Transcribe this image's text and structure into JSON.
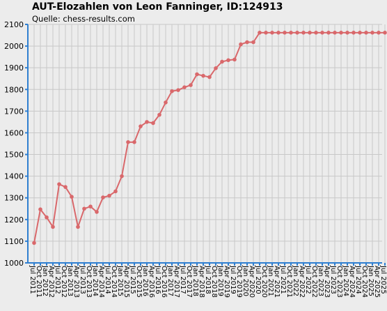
{
  "chart_data": {
    "type": "line",
    "title": "AUT-Elozahlen von Leon Fanninger, ID:124913",
    "subtitle": "Quelle: chess-results.com",
    "xlabel": "",
    "ylabel": "",
    "ylim": [
      1000,
      2100
    ],
    "yticks": [
      1000,
      1100,
      1200,
      1300,
      1400,
      1500,
      1600,
      1700,
      1800,
      1900,
      2000,
      2100
    ],
    "grid": true,
    "line_color": "#d9686b",
    "categories": [
      "Jul 2011",
      "Oct 2011",
      "Jan 2012",
      "Apr 2012",
      "Jul 2012",
      "Oct 2012",
      "Jan 2013",
      "Apr 2013",
      "Jul 2013",
      "Oct 2013",
      "Jan 2014",
      "Apr 2014",
      "Jul 2014",
      "Oct 2014",
      "Jan 2015",
      "Apr 2015",
      "Jul 2015",
      "Oct 2015",
      "Jan 2016",
      "Apr 2016",
      "Jul 2016",
      "Oct 2016",
      "Jan 2017",
      "Apr 2017",
      "Jul 2017",
      "Oct 2017",
      "Jan 2018",
      "Apr 2018",
      "Jul 2018",
      "Oct 2018",
      "Jan 2019",
      "Apr 2019",
      "Jul 2019",
      "Oct 2019",
      "Jan 2020",
      "Apr 2020",
      "Jul 2020",
      "Oct 2020",
      "Jan 2021",
      "Apr 2021",
      "Jul 2021",
      "Oct 2021",
      "Jan 2022",
      "Apr 2022",
      "Jul 2022",
      "Oct 2022",
      "Jan 2023",
      "Apr 2023",
      "Jul 2023",
      "Oct 2023",
      "Jan 2024",
      "Apr 2024",
      "Jul 2024",
      "Oct 2024",
      "Jan 2025",
      "Apr 2025",
      "Jul 2025"
    ],
    "series": [
      {
        "values": [
          1092,
          1247,
          1210,
          1166,
          1363,
          1350,
          1305,
          1166,
          1250,
          1260,
          1235,
          1302,
          1310,
          1330,
          1400,
          1557,
          1557,
          1630,
          1650,
          1645,
          1683,
          1740,
          1792,
          1797,
          1810,
          1820,
          1870,
          1863,
          1857,
          1898,
          1928,
          1935,
          1938,
          2008,
          2018,
          2018,
          2062,
          2062,
          2062,
          2062,
          2062,
          2062,
          2062,
          2062,
          2062,
          2062,
          2062,
          2062,
          2062,
          2062,
          2062,
          2062,
          2062,
          2062,
          2062,
          2062,
          2062
        ]
      }
    ]
  }
}
